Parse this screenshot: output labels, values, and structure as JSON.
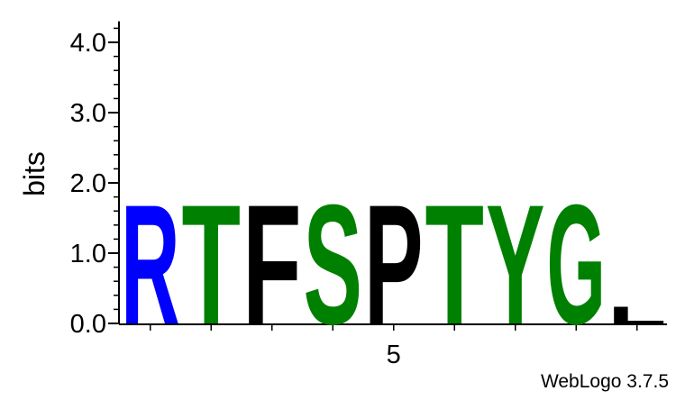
{
  "chart_data": {
    "type": "sequence-logo",
    "ylabel": "bits",
    "ylim": [
      0,
      4.3
    ],
    "y_ticks": [
      {
        "value": 0,
        "label": "0.0"
      },
      {
        "value": 1,
        "label": "1.0"
      },
      {
        "value": 2,
        "label": "2.0"
      },
      {
        "value": 3,
        "label": "3.0"
      },
      {
        "value": 4,
        "label": "4.0"
      }
    ],
    "x_tick_labels": [
      {
        "position": 5,
        "label": "5"
      }
    ],
    "positions": [
      {
        "position": 1,
        "letter": "R",
        "bits": 1.75,
        "color": "#0000ff"
      },
      {
        "position": 2,
        "letter": "T",
        "bits": 1.75,
        "color": "#008000"
      },
      {
        "position": 3,
        "letter": "F",
        "bits": 1.75,
        "color": "#000000"
      },
      {
        "position": 4,
        "letter": "S",
        "bits": 1.75,
        "color": "#008000"
      },
      {
        "position": 5,
        "letter": "P",
        "bits": 1.75,
        "color": "#000000"
      },
      {
        "position": 6,
        "letter": "T",
        "bits": 1.75,
        "color": "#008000"
      },
      {
        "position": 7,
        "letter": "Y",
        "bits": 1.75,
        "color": "#008000"
      },
      {
        "position": 8,
        "letter": "G",
        "bits": 1.75,
        "color": "#008000"
      },
      {
        "position": 9,
        "letter": "L",
        "bits": 0.25,
        "color": "#000000"
      }
    ]
  },
  "footer": {
    "credit": "WebLogo 3.7.5"
  }
}
